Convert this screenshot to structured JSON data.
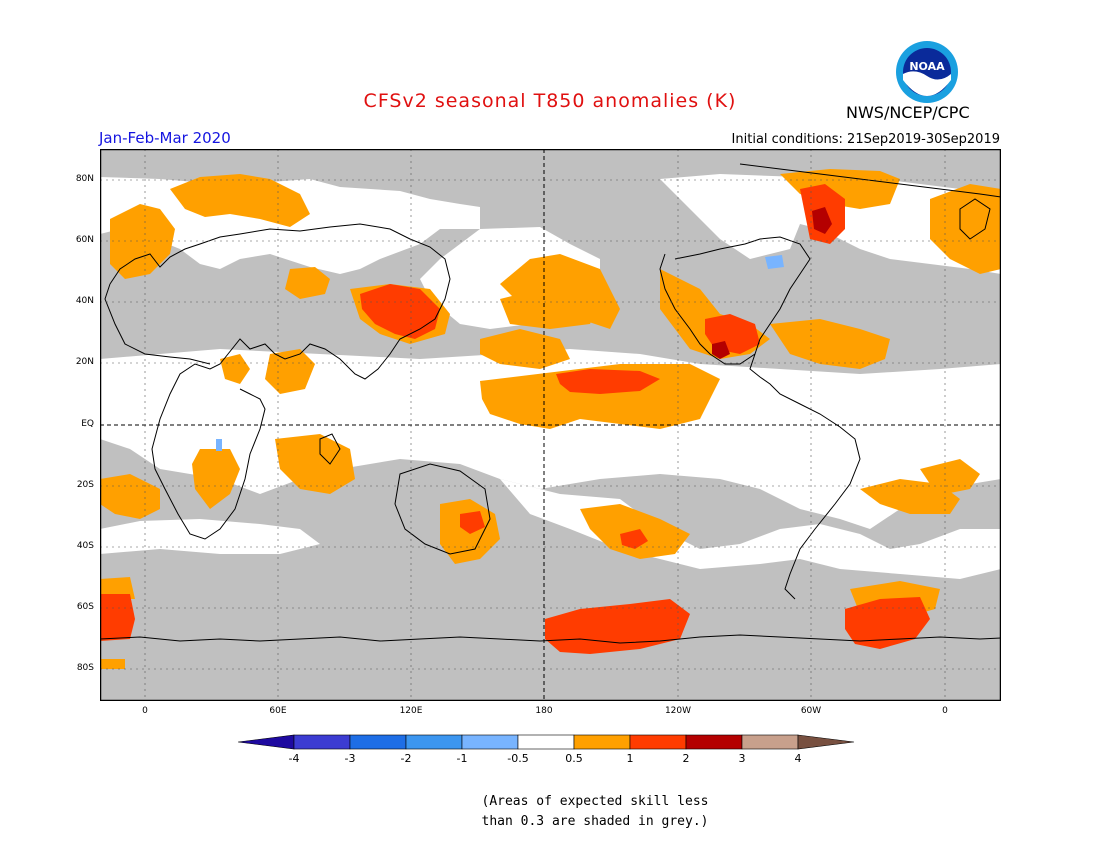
{
  "header": {
    "title": "CFSv2 seasonal T850 anomalies (K)",
    "period": "Jan-Feb-Mar 2020",
    "initial_conditions": "Initial conditions: 21Sep2019-30Sep2019",
    "agency": "NWS/NCEP/CPC",
    "logo_text": "NOAA"
  },
  "map": {
    "lat_labels": [
      "80N",
      "60N",
      "40N",
      "20N",
      "EQ",
      "20S",
      "40S",
      "60S",
      "80S"
    ],
    "lon_labels": [
      "0",
      "60E",
      "120E",
      "180",
      "120W",
      "60W",
      "0"
    ],
    "colors": {
      "ocean_land_bg": "#ffffff",
      "low_skill_grey": "#c0c0c0",
      "anom_0_5_1": "#ffa000",
      "anom_1_2": "#ff3c00",
      "anom_2_3": "#b40000",
      "anom_neg_1_neg_0_5": "#78b4ff",
      "coastline": "#000000"
    }
  },
  "legend": {
    "ticks": [
      "-4",
      "-3",
      "-2",
      "-1",
      "-0.5",
      "0.5",
      "1",
      "2",
      "3",
      "4"
    ],
    "colors": [
      "#1e0aa0",
      "#3c3cd2",
      "#1e6ee6",
      "#3c96f0",
      "#78b4ff",
      "#ffffff",
      "#ffa000",
      "#ff3c00",
      "#b40000",
      "#c8a08c",
      "#785040"
    ]
  },
  "note": {
    "line1": "(Areas of expected skill less",
    "line2": "than 0.3 are shaded in grey.)"
  }
}
